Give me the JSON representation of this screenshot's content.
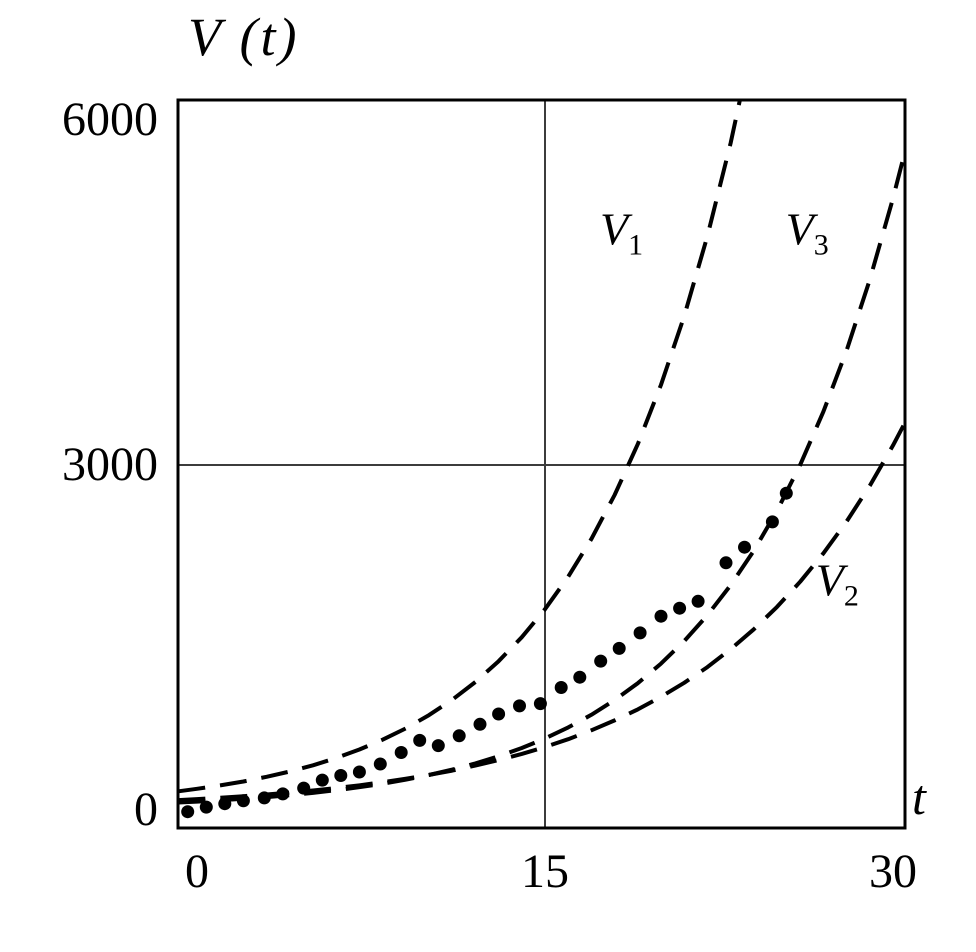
{
  "chart_data": {
    "type": "line+scatter",
    "title": "",
    "y_label": "V (t)",
    "x_label": "t",
    "x_range": [
      -0.8,
      30.5
    ],
    "y_range": [
      -160,
      6175
    ],
    "x_ticks": [
      {
        "value": 0,
        "label": "0"
      },
      {
        "value": 15,
        "label": "15"
      },
      {
        "value": 30,
        "label": "30"
      }
    ],
    "y_ticks": [
      {
        "value": 0,
        "label": "0"
      },
      {
        "value": 3000,
        "label": "3000"
      },
      {
        "value": 6000,
        "label": "6000"
      }
    ],
    "gridlines": {
      "x_values": [
        15
      ],
      "y_values": [
        3000
      ]
    },
    "legend_position": "inline-curve-labels",
    "colors": {
      "line": "#000000",
      "grid": "#3c3c3c",
      "frame": "#000000",
      "background": "#ffffff"
    },
    "series": [
      {
        "name": "V1",
        "label_base": "V",
        "label_sub": "1",
        "style": "dashed",
        "label_anchor": [
          18.3,
          5050
        ],
        "points": [
          [
            -0.8,
            163
          ],
          [
            0,
            184
          ],
          [
            1,
            214
          ],
          [
            2,
            248
          ],
          [
            3,
            289
          ],
          [
            4,
            335
          ],
          [
            5,
            389
          ],
          [
            6,
            452
          ],
          [
            7,
            526
          ],
          [
            8,
            611
          ],
          [
            9,
            710
          ],
          [
            10,
            825
          ],
          [
            11,
            958
          ],
          [
            12,
            1113
          ],
          [
            13,
            1294
          ],
          [
            14,
            1503
          ],
          [
            15,
            1746
          ],
          [
            16,
            2029
          ],
          [
            17,
            2357
          ],
          [
            18,
            2739
          ],
          [
            19,
            3182
          ],
          [
            20,
            3697
          ],
          [
            21,
            4295
          ],
          [
            22,
            4990
          ],
          [
            23,
            5798
          ],
          [
            24,
            6736
          ]
        ]
      },
      {
        "name": "V2",
        "label_base": "V",
        "label_sub": "2",
        "style": "dashed",
        "label_anchor": [
          27.6,
          2000
        ],
        "points": [
          [
            -0.8,
            86
          ],
          [
            0,
            95
          ],
          [
            1,
            107
          ],
          [
            2,
            120
          ],
          [
            3,
            135
          ],
          [
            4,
            152
          ],
          [
            5,
            170
          ],
          [
            6,
            191
          ],
          [
            7,
            215
          ],
          [
            8,
            242
          ],
          [
            9,
            272
          ],
          [
            10,
            305
          ],
          [
            11,
            343
          ],
          [
            12,
            386
          ],
          [
            13,
            434
          ],
          [
            14,
            488
          ],
          [
            15,
            548
          ],
          [
            16,
            616
          ],
          [
            17,
            693
          ],
          [
            18,
            779
          ],
          [
            19,
            875
          ],
          [
            20,
            984
          ],
          [
            21,
            1106
          ],
          [
            22,
            1243
          ],
          [
            23,
            1398
          ],
          [
            24,
            1571
          ],
          [
            25,
            1766
          ],
          [
            26,
            1985
          ],
          [
            27,
            2232
          ],
          [
            28,
            2509
          ],
          [
            29,
            2820
          ],
          [
            30,
            3170
          ],
          [
            30.5,
            3362
          ]
        ]
      },
      {
        "name": "V3",
        "label_base": "V",
        "label_sub": "3",
        "style": "dashed",
        "label_anchor": [
          26.3,
          5050
        ],
        "points": [
          [
            -0.8,
            65
          ],
          [
            0,
            73
          ],
          [
            1,
            84
          ],
          [
            2,
            97
          ],
          [
            3,
            112
          ],
          [
            4,
            129
          ],
          [
            5,
            149
          ],
          [
            6,
            172
          ],
          [
            7,
            198
          ],
          [
            8,
            229
          ],
          [
            9,
            264
          ],
          [
            10,
            304
          ],
          [
            11,
            351
          ],
          [
            12,
            405
          ],
          [
            13,
            467
          ],
          [
            14,
            539
          ],
          [
            15,
            622
          ],
          [
            16,
            718
          ],
          [
            17,
            828
          ],
          [
            18,
            956
          ],
          [
            19,
            1103
          ],
          [
            20,
            1273
          ],
          [
            21,
            1469
          ],
          [
            22,
            1694
          ],
          [
            23,
            1955
          ],
          [
            24,
            2255
          ],
          [
            25,
            2602
          ],
          [
            26,
            3002
          ],
          [
            27,
            3464
          ],
          [
            28,
            3996
          ],
          [
            29,
            4611
          ],
          [
            30,
            5319
          ],
          [
            30.5,
            5713
          ]
        ]
      }
    ],
    "scatter": {
      "name": "observed-data-points",
      "marker": "filled-circle",
      "points": [
        [
          -0.4,
          -15
        ],
        [
          0.4,
          25
        ],
        [
          1.2,
          55
        ],
        [
          2.0,
          80
        ],
        [
          2.9,
          105
        ],
        [
          3.7,
          140
        ],
        [
          4.6,
          190
        ],
        [
          5.4,
          260
        ],
        [
          6.2,
          300
        ],
        [
          7.0,
          330
        ],
        [
          7.9,
          400
        ],
        [
          8.8,
          500
        ],
        [
          9.6,
          605
        ],
        [
          10.4,
          560
        ],
        [
          11.3,
          645
        ],
        [
          12.2,
          745
        ],
        [
          13.0,
          835
        ],
        [
          13.9,
          905
        ],
        [
          14.8,
          925
        ],
        [
          15.7,
          1065
        ],
        [
          16.5,
          1155
        ],
        [
          17.4,
          1295
        ],
        [
          18.2,
          1405
        ],
        [
          19.1,
          1540
        ],
        [
          20.0,
          1685
        ],
        [
          20.8,
          1755
        ],
        [
          21.6,
          1815
        ],
        [
          22.8,
          2150
        ],
        [
          23.6,
          2285
        ],
        [
          24.8,
          2505
        ],
        [
          25.4,
          2755
        ]
      ]
    }
  }
}
